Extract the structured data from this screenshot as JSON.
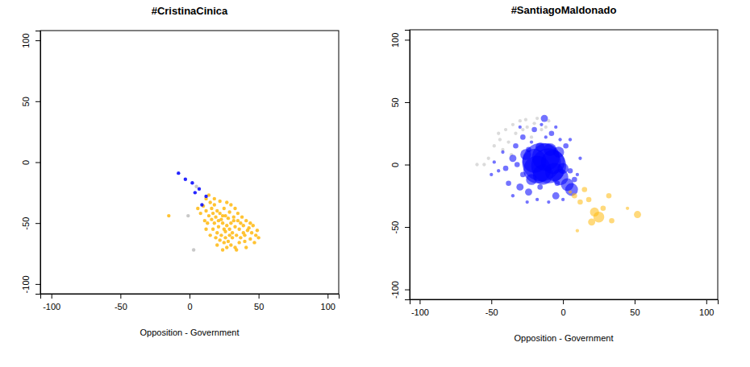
{
  "chart_data": [
    {
      "type": "scatter",
      "title": "#CristinaCinica",
      "x_label": "Opposition - Government",
      "xlim": [
        -108,
        108
      ],
      "ylim": [
        -108,
        108
      ],
      "xticks": [
        -100,
        -50,
        0,
        50,
        100
      ],
      "yticks": [
        -100,
        -50,
        0,
        50,
        100
      ],
      "series": [
        {
          "color": "#FFB90F",
          "x": [
            20,
            22,
            25,
            18,
            15,
            12,
            16,
            19,
            23,
            26,
            29,
            32,
            35,
            30,
            27,
            24,
            21,
            18,
            14,
            12,
            10,
            17,
            20,
            23,
            26,
            29,
            33,
            36,
            39,
            42,
            45,
            48,
            40,
            37,
            34,
            31,
            28,
            25,
            22,
            19,
            30,
            33,
            27,
            24,
            36,
            40,
            44,
            47,
            50,
            38,
            41,
            44,
            33,
            30,
            27,
            22,
            18,
            14,
            11,
            8,
            6,
            15,
            12,
            26,
            31,
            35,
            28,
            25,
            21,
            16,
            32,
            37,
            43,
            39,
            20,
            34,
            29,
            24,
            17,
            13,
            46,
            49,
            41,
            -15
          ],
          "values": [
            -40,
            -42,
            -38,
            -35,
            -33,
            -30,
            -38,
            -45,
            -47,
            -44,
            -41,
            -45,
            -48,
            -50,
            -52,
            -50,
            -53,
            -50,
            -44,
            -40,
            -36,
            -55,
            -58,
            -60,
            -57,
            -55,
            -53,
            -55,
            -52,
            -56,
            -58,
            -60,
            -60,
            -62,
            -60,
            -62,
            -65,
            -66,
            -64,
            -62,
            -68,
            -70,
            -70,
            -72,
            -66,
            -65,
            -63,
            -66,
            -62,
            -45,
            -48,
            -50,
            -38,
            -35,
            -33,
            -32,
            -30,
            -27,
            -48,
            -42,
            -38,
            -60,
            -55,
            -62,
            -58,
            -42,
            -46,
            -55,
            -48,
            -47,
            -48,
            -50,
            -54,
            -58,
            -68,
            -72,
            -60,
            -44,
            -42,
            -50,
            -52,
            -56,
            -70,
            -44
          ]
        },
        {
          "color": "#0000FF",
          "x": [
            -8,
            -3,
            2,
            7,
            12,
            4,
            9
          ],
          "values": [
            -9,
            -14,
            -17,
            -22,
            -28,
            -25,
            -35
          ]
        },
        {
          "color": "#BEBEBE",
          "x": [
            -1,
            5,
            3
          ],
          "values": [
            -44,
            -20,
            -72
          ]
        }
      ]
    },
    {
      "type": "scatter",
      "title": "#SantiagoMaldonado",
      "x_label": "Opposition - Government",
      "xlim": [
        -107,
        108
      ],
      "ylim": [
        -108,
        108
      ],
      "xticks": [
        -100,
        -50,
        0,
        50,
        100
      ],
      "yticks": [
        -100,
        -50,
        0,
        50,
        100
      ],
      "series": [
        {
          "color": "#BEBEBE",
          "x": [
            -45,
            -40,
            -35,
            -30,
            -25,
            -20,
            -15,
            -38,
            -42,
            -48,
            -52,
            -55,
            -33,
            -28,
            -22,
            -18,
            -10,
            -36,
            -44,
            -60,
            -26,
            -12
          ],
          "values": [
            25,
            28,
            32,
            35,
            30,
            33,
            28,
            18,
            12,
            15,
            5,
            0,
            25,
            28,
            22,
            37,
            35,
            8,
            20,
            0,
            36,
            30
          ],
          "sizes": [
            1,
            1,
            1,
            1,
            1,
            1,
            1,
            1,
            1,
            1,
            1,
            1,
            1,
            1,
            1,
            1,
            1,
            1,
            1,
            1,
            1,
            1
          ]
        },
        {
          "color": "#0000FF",
          "x": [
            -15,
            -10,
            -18,
            -12,
            -7,
            -20,
            -14,
            -6,
            -2,
            3,
            6,
            -9,
            -22,
            -26,
            -3,
            0,
            -16,
            -13,
            -30,
            -24,
            -5,
            -35,
            -40,
            -33,
            -28,
            -20,
            -8,
            2,
            5,
            8,
            -38,
            -45,
            -42,
            -30,
            -15,
            -5,
            5,
            10,
            -18,
            -10,
            0,
            -35,
            -48,
            -25,
            -12,
            -22,
            -2,
            12,
            -50,
            -28,
            -32,
            -4,
            -16,
            -24
          ],
          "values": [
            2,
            -1,
            -4,
            6,
            2,
            3,
            -8,
            -6,
            -10,
            -16,
            -20,
            12,
            -12,
            8,
            10,
            -3,
            14,
            37,
            -18,
            -22,
            -25,
            5,
            -3,
            15,
            22,
            28,
            25,
            15,
            -5,
            -12,
            -15,
            -5,
            10,
            30,
            32,
            30,
            20,
            -8,
            -28,
            -30,
            -28,
            -25,
            2,
            -30,
            22,
            18,
            20,
            5,
            -8,
            -8,
            0,
            -15,
            -18,
            12
          ],
          "sizes": [
            20,
            18,
            14,
            14,
            12,
            12,
            10,
            9,
            8,
            6,
            6,
            6,
            5,
            5,
            5,
            5,
            4,
            3,
            3,
            3,
            3,
            3,
            2,
            2,
            2,
            2,
            2,
            2,
            2,
            2,
            2,
            1,
            1,
            1,
            1,
            1,
            1,
            1,
            1,
            1,
            1,
            1,
            1,
            1,
            1,
            1,
            1,
            1,
            1,
            2,
            2,
            2,
            2,
            2
          ]
        },
        {
          "color": "#FFB90F",
          "x": [
            22,
            25,
            32,
            34,
            52,
            12,
            18,
            20,
            15,
            28,
            10,
            8,
            45,
            5
          ],
          "values": [
            -38,
            -42,
            -25,
            -45,
            -40,
            -30,
            -28,
            -46,
            -20,
            -35,
            -53,
            -25,
            -35,
            -22
          ],
          "sizes": [
            4,
            5,
            2,
            2,
            3,
            2,
            2,
            3,
            2,
            2,
            1,
            2,
            1,
            1
          ]
        }
      ]
    }
  ]
}
